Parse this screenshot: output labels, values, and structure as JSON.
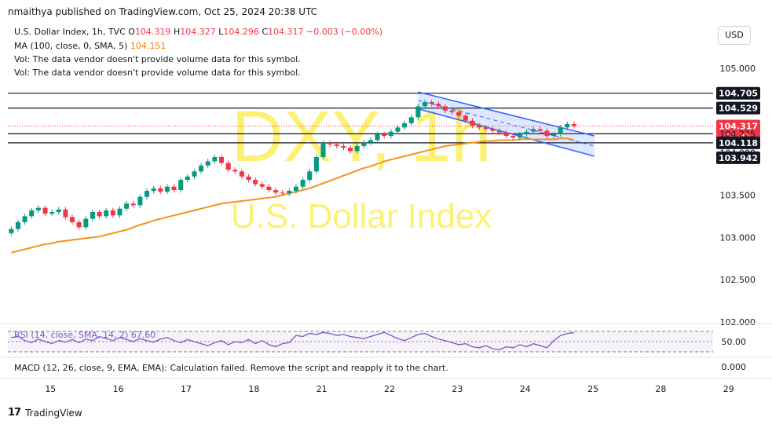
{
  "header": {
    "published": "nmaithya published on TradingView.com, Oct 25, 2024 20:38 UTC"
  },
  "legend": {
    "symbol": "U.S. Dollar Index, 1h, TVC",
    "open_label": "O",
    "open": "104.319",
    "high_label": "H",
    "high": "104.327",
    "low_label": "L",
    "low": "104.296",
    "close_label": "C",
    "close": "104.317",
    "change": "−0.003 (−0.00%)",
    "ma_label": "MA (100, close, 0, SMA, 5)",
    "ma_value": "104.151",
    "vol_line1": "Vol: The data vendor doesn't provide volume data for this symbol.",
    "vol_line2": "Vol: The data vendor doesn't provide volume data for this symbol."
  },
  "currency": "USD",
  "watermark": {
    "big": "DXY, 1h",
    "small": "U.S. Dollar Index"
  },
  "rsi_label": "RSI (14, close, SMA, 14, 2)  67.60",
  "macd_label": "MACD (12, 26, close, 9, EMA, EMA): Calculation failed. Remove the script and reapply it to the chart.",
  "footer": {
    "brand": "TradingView"
  },
  "colors": {
    "up": "#089981",
    "down": "#f23645",
    "ma": "#f7931a",
    "channel": "#2962ff",
    "rsi": "#7e57c2",
    "level": "#131722"
  },
  "chart_data": {
    "type": "candlestick",
    "title": "U.S. Dollar Index, 1h, TVC",
    "xlabel": "",
    "ylabel": "",
    "ylim": [
      102.0,
      105.25
    ],
    "price_ticks": [
      "105.000",
      "104.500",
      "104.000",
      "103.500",
      "103.000",
      "102.500",
      "102.000"
    ],
    "price_tick_values": [
      105.0,
      104.5,
      104.0,
      103.5,
      103.0,
      102.5,
      102.0
    ],
    "x_tick_labels": [
      "15",
      "16",
      "17",
      "18",
      "21",
      "22",
      "23",
      "24",
      "25",
      "28",
      "29"
    ],
    "x_tick_positions": [
      0.5,
      10.5,
      20.5,
      30.5,
      40.5,
      50.5,
      60.5,
      70.5,
      80.5,
      90.5,
      100.5
    ],
    "levels": [
      104.705,
      104.529,
      104.225,
      104.118
    ],
    "price_labels": [
      {
        "text": "104.705",
        "value": 104.705,
        "style": "dark"
      },
      {
        "text": "104.529",
        "value": 104.529,
        "style": "dark"
      },
      {
        "text": "104.317",
        "value": 104.317,
        "style": "red",
        "sub": "21:41"
      },
      {
        "text": "104.225",
        "value": 104.225,
        "style": "plain"
      },
      {
        "text": "104.118",
        "value": 104.118,
        "style": "dark"
      },
      {
        "text": "103.942",
        "value": 103.942,
        "style": "dark"
      }
    ],
    "current_price": 104.317,
    "series": [
      {
        "name": "Close",
        "values": [
          103.1,
          103.18,
          103.25,
          103.32,
          103.35,
          103.28,
          103.3,
          103.33,
          103.24,
          103.18,
          103.12,
          103.22,
          103.3,
          103.25,
          103.32,
          103.26,
          103.34,
          103.4,
          103.38,
          103.48,
          103.55,
          103.58,
          103.54,
          103.6,
          103.56,
          103.68,
          103.72,
          103.78,
          103.85,
          103.9,
          103.95,
          103.88,
          103.8,
          103.78,
          103.72,
          103.68,
          103.63,
          103.6,
          103.56,
          103.53,
          103.52,
          103.55,
          103.6,
          103.68,
          103.78,
          103.95,
          104.12,
          104.1,
          104.08,
          104.06,
          104.02,
          104.08,
          104.12,
          104.15,
          104.22,
          104.2,
          104.25,
          104.3,
          104.35,
          104.42,
          104.55,
          104.6,
          104.58,
          104.55,
          104.5,
          104.48,
          104.44,
          104.38,
          104.32,
          104.3,
          104.28,
          104.26,
          104.24,
          104.2,
          104.18,
          104.22,
          104.25,
          104.28,
          104.26,
          104.2,
          104.22,
          104.3,
          104.34,
          104.317
        ]
      },
      {
        "name": "MA (100, close, 0, SMA, 5)",
        "values": [
          102.82,
          102.84,
          102.86,
          102.88,
          102.9,
          102.92,
          102.93,
          102.95,
          102.96,
          102.97,
          102.98,
          102.99,
          103.0,
          103.01,
          103.03,
          103.05,
          103.07,
          103.09,
          103.12,
          103.15,
          103.17,
          103.2,
          103.22,
          103.24,
          103.26,
          103.28,
          103.3,
          103.32,
          103.34,
          103.36,
          103.38,
          103.4,
          103.41,
          103.42,
          103.43,
          103.44,
          103.45,
          103.46,
          103.47,
          103.48,
          103.5,
          103.52,
          103.54,
          103.56,
          103.58,
          103.61,
          103.64,
          103.67,
          103.7,
          103.73,
          103.76,
          103.79,
          103.82,
          103.84,
          103.87,
          103.9,
          103.92,
          103.94,
          103.96,
          103.98,
          104.0,
          104.02,
          104.04,
          104.06,
          104.08,
          104.09,
          104.1,
          104.11,
          104.12,
          104.13,
          104.14,
          104.14,
          104.15,
          104.15,
          104.15,
          104.16,
          104.16,
          104.16,
          104.16,
          104.16,
          104.16,
          104.17,
          104.17,
          104.151
        ]
      }
    ],
    "channel": {
      "upper": [
        [
          60.5,
          104.72
        ],
        [
          86.5,
          104.2
        ]
      ],
      "lower": [
        [
          60.5,
          104.52
        ],
        [
          86.5,
          103.96
        ]
      ],
      "mid": [
        [
          60.5,
          104.62
        ],
        [
          86.5,
          104.08
        ]
      ]
    },
    "rsi": {
      "levels_ticks": [
        "50.00"
      ],
      "values": [
        58,
        60,
        52,
        48,
        55,
        50,
        46,
        52,
        49,
        54,
        48,
        55,
        52,
        60,
        56,
        52,
        58,
        54,
        50,
        56,
        52,
        49,
        55,
        58,
        52,
        48,
        54,
        50,
        46,
        42,
        48,
        52,
        44,
        50,
        48,
        54,
        46,
        52,
        44,
        40,
        46,
        48,
        62,
        60,
        66,
        64,
        68,
        66,
        62,
        64,
        60,
        58,
        56,
        60,
        64,
        68,
        62,
        56,
        52,
        58,
        64,
        66,
        60,
        55,
        52,
        48,
        44,
        46,
        40,
        38,
        42,
        36,
        34,
        40,
        38,
        44,
        40,
        46,
        42,
        38,
        52,
        62,
        66,
        67.6
      ]
    },
    "macd_ticks": [
      "0.000"
    ]
  }
}
